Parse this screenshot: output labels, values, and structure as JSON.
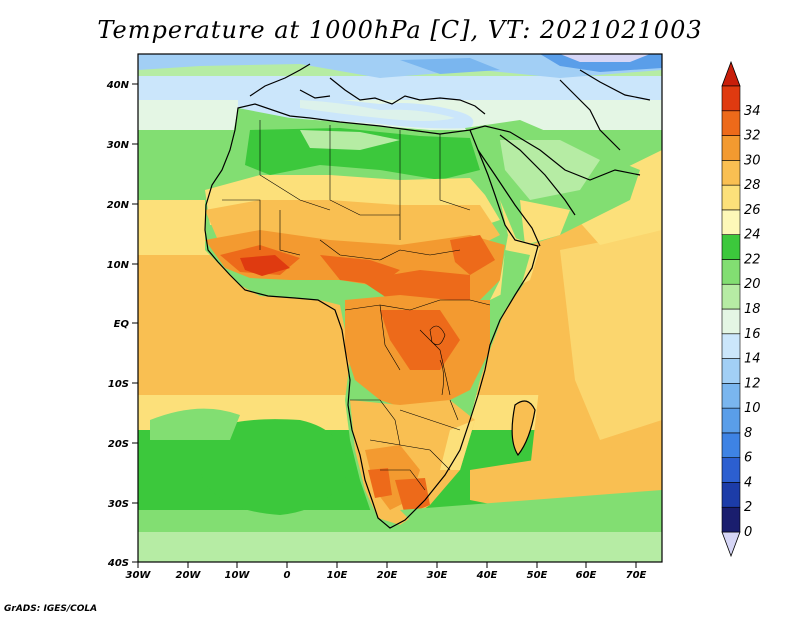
{
  "title": "Temperature at 1000hPa [C], VT: 2021021003",
  "credit": "GrADS: IGES/COLA",
  "map": {
    "lon_labels": [
      "30W",
      "20W",
      "10W",
      "0",
      "10E",
      "20E",
      "30E",
      "40E",
      "50E",
      "60E",
      "70E"
    ],
    "lat_labels": [
      "40N",
      "30N",
      "20N",
      "10N",
      "EQ",
      "10S",
      "20S",
      "30S",
      "40S"
    ]
  },
  "colorbar": {
    "levels": [
      "0",
      "2",
      "4",
      "6",
      "8",
      "10",
      "12",
      "14",
      "16",
      "18",
      "20",
      "22",
      "24",
      "26",
      "28",
      "30",
      "32",
      "34"
    ],
    "colors": [
      "#1a1e6e",
      "#1c3ca8",
      "#2c5fd0",
      "#3e83e4",
      "#5a9ee9",
      "#7ab6ef",
      "#a2cff5",
      "#cbe6fb",
      "#e4f6e4",
      "#b6eca4",
      "#82de72",
      "#3cc83c",
      "#fdf8b8",
      "#fce07a",
      "#f9bf52",
      "#f39a30",
      "#ed6a1a",
      "#df3a10"
    ],
    "under_color": "#d6d6f6",
    "over_color": "#c81e0a"
  }
}
